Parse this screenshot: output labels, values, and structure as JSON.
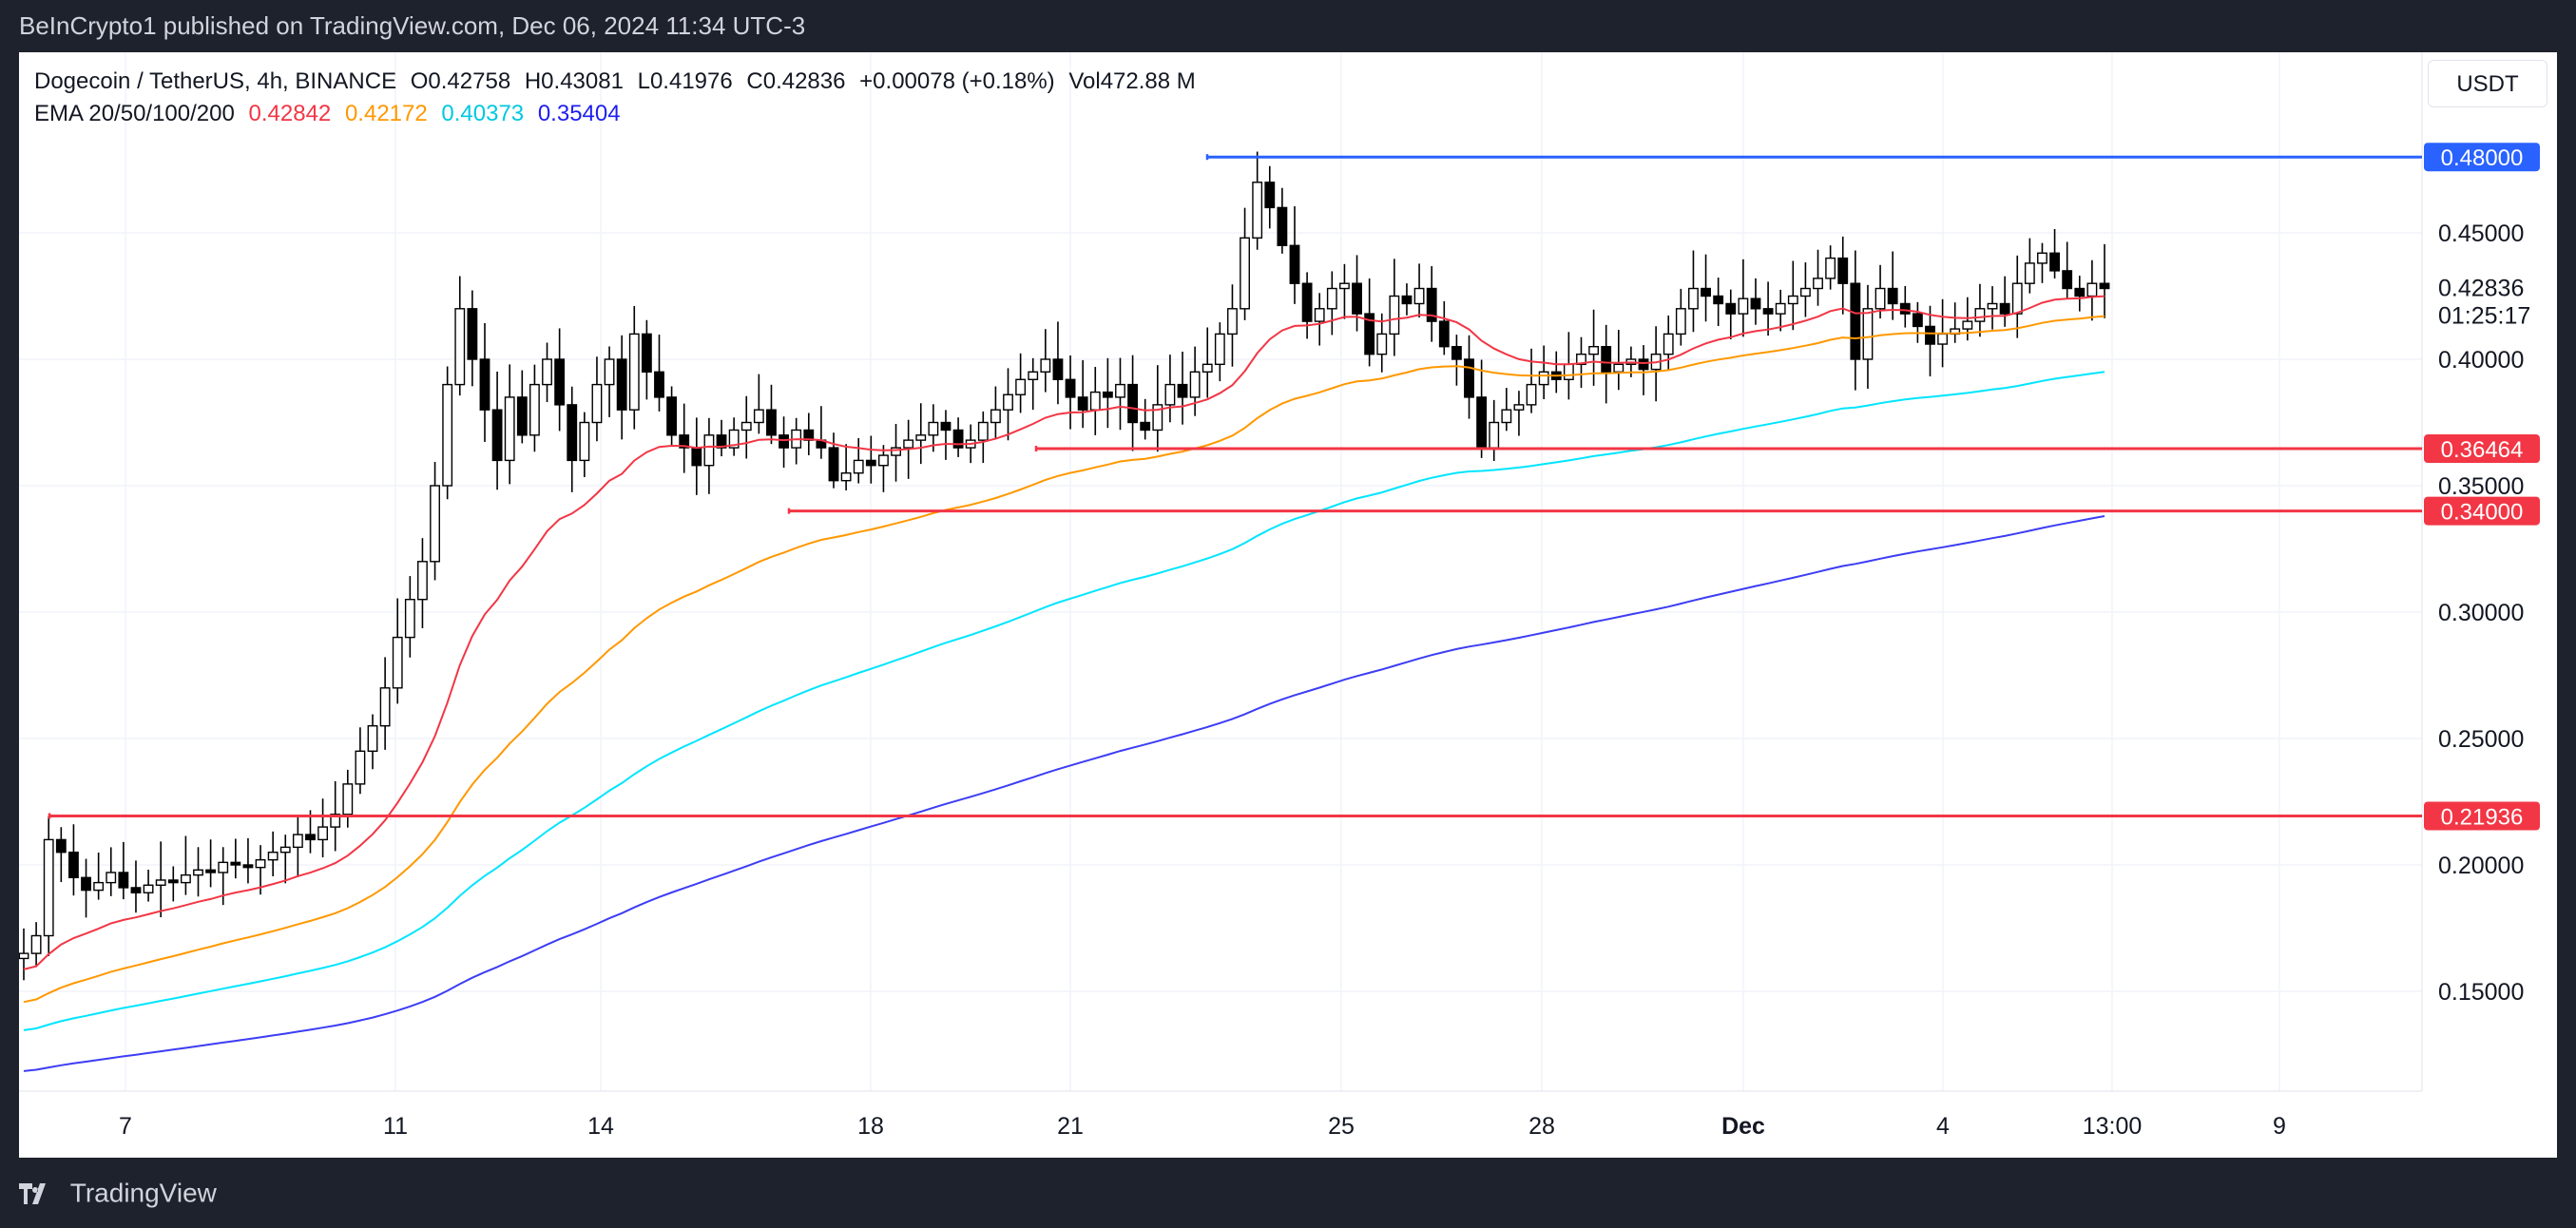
{
  "header": {
    "publisher": "BeInCrypto1 published on TradingView.com, Dec 06, 2024 11:34 UTC-3"
  },
  "legend": {
    "symbol": "Dogecoin / TetherUS, 4h, BINANCE",
    "open": "O0.42758",
    "high": "H0.43081",
    "low": "L0.41976",
    "close": "C0.42836",
    "change": "+0.00078 (+0.18%)",
    "volume": "Vol472.88 M",
    "ema_label": "EMA 20/50/100/200",
    "ema20": "0.42842",
    "ema50": "0.42172",
    "ema100": "0.40373",
    "ema200": "0.35404"
  },
  "controls": {
    "currency_button": "USDT"
  },
  "footer": {
    "brand": "TradingView"
  },
  "colors": {
    "ema20": "#f23645",
    "ema50": "#ff9800",
    "ema100": "#00e5ff",
    "ema200": "#3d3df5",
    "resistance": "#2962ff",
    "support": "#f23645",
    "candle_up": "#ffffff",
    "candle_down": "#000000"
  },
  "chart_data": {
    "type": "candlestick",
    "title": "Dogecoin / TetherUS, 4h, BINANCE",
    "x_ticks": [
      "7",
      "11",
      "14",
      "18",
      "21",
      "25",
      "28",
      "Dec",
      "4",
      "13:00",
      "9"
    ],
    "y_ticks": [
      "0.45000",
      "0.40000",
      "0.35000",
      "0.30000",
      "0.25000",
      "0.20000",
      "0.15000"
    ],
    "ylim": [
      0.098,
      0.5
    ],
    "grid": true,
    "current_price": "0.42836",
    "countdown": "01:25:17",
    "horizontal_levels": [
      {
        "label": "0.48000",
        "value": 0.48,
        "role": "resistance",
        "from": "Nov 22 20:00"
      },
      {
        "label": "0.36464",
        "value": 0.36464,
        "role": "support",
        "from": "Nov 20 12:00"
      },
      {
        "label": "0.34000",
        "value": 0.34,
        "role": "support",
        "from": "Nov 16 12:00"
      },
      {
        "label": "0.21936",
        "value": 0.21936,
        "role": "support",
        "from": "Nov 5 04:00"
      }
    ],
    "candles_note": "approximate 4h OHLC from Nov 5 to Dec 6 (close series read from chart)",
    "closes": [
      0.165,
      0.172,
      0.21,
      0.205,
      0.195,
      0.19,
      0.193,
      0.197,
      0.191,
      0.189,
      0.192,
      0.194,
      0.193,
      0.196,
      0.198,
      0.197,
      0.201,
      0.2,
      0.199,
      0.202,
      0.205,
      0.207,
      0.212,
      0.21,
      0.215,
      0.22,
      0.232,
      0.245,
      0.255,
      0.27,
      0.29,
      0.305,
      0.32,
      0.35,
      0.39,
      0.42,
      0.4,
      0.38,
      0.36,
      0.385,
      0.37,
      0.39,
      0.4,
      0.382,
      0.36,
      0.375,
      0.39,
      0.4,
      0.38,
      0.41,
      0.395,
      0.385,
      0.37,
      0.365,
      0.358,
      0.37,
      0.365,
      0.372,
      0.375,
      0.38,
      0.37,
      0.365,
      0.372,
      0.368,
      0.365,
      0.352,
      0.355,
      0.36,
      0.358,
      0.362,
      0.365,
      0.368,
      0.37,
      0.375,
      0.372,
      0.365,
      0.368,
      0.375,
      0.38,
      0.386,
      0.392,
      0.395,
      0.4,
      0.392,
      0.385,
      0.38,
      0.387,
      0.385,
      0.39,
      0.375,
      0.372,
      0.382,
      0.39,
      0.385,
      0.395,
      0.398,
      0.41,
      0.42,
      0.448,
      0.47,
      0.46,
      0.445,
      0.43,
      0.415,
      0.42,
      0.428,
      0.43,
      0.418,
      0.402,
      0.41,
      0.425,
      0.422,
      0.428,
      0.415,
      0.405,
      0.4,
      0.385,
      0.365,
      0.375,
      0.38,
      0.382,
      0.39,
      0.395,
      0.392,
      0.398,
      0.402,
      0.405,
      0.395,
      0.398,
      0.4,
      0.396,
      0.402,
      0.41,
      0.42,
      0.428,
      0.425,
      0.422,
      0.418,
      0.424,
      0.42,
      0.418,
      0.422,
      0.425,
      0.428,
      0.432,
      0.44,
      0.43,
      0.4,
      0.42,
      0.428,
      0.422,
      0.418,
      0.413,
      0.406,
      0.41,
      0.412,
      0.415,
      0.42,
      0.422,
      0.418,
      0.43,
      0.438,
      0.442,
      0.435,
      0.428,
      0.425,
      0.43,
      0.428
    ],
    "ema": [
      {
        "name": "EMA 20",
        "last": 0.42842
      },
      {
        "name": "EMA 50",
        "last": 0.42172
      },
      {
        "name": "EMA 100",
        "last": 0.40373
      },
      {
        "name": "EMA 200",
        "last": 0.35404
      }
    ]
  }
}
